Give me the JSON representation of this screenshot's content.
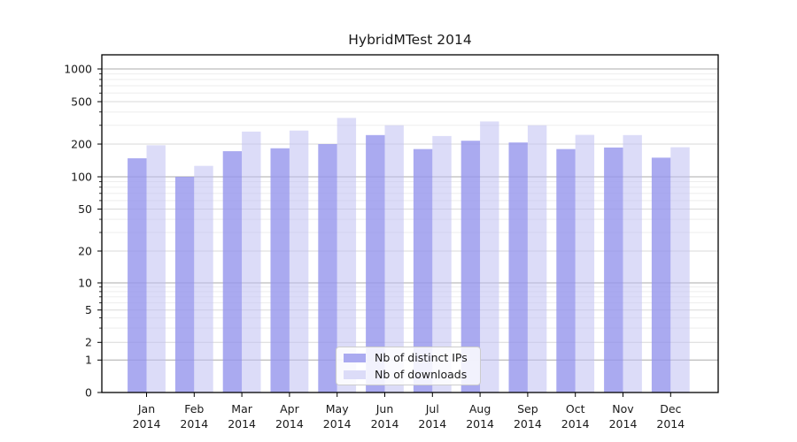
{
  "title": "HybridMTest 2014",
  "chart_data": {
    "type": "bar",
    "title": "HybridMTest 2014",
    "categories": [
      "Jan 2014",
      "Feb 2014",
      "Mar 2014",
      "Apr 2014",
      "May 2014",
      "Jun 2014",
      "Jul 2014",
      "Aug 2014",
      "Sep 2014",
      "Oct 2014",
      "Nov 2014",
      "Dec 2014"
    ],
    "series": [
      {
        "name": "Nb of distinct IPs",
        "color": "#aaaaf0",
        "values": [
          148,
          100,
          172,
          183,
          200,
          243,
          180,
          215,
          207,
          180,
          186,
          150
        ]
      },
      {
        "name": "Nb of downloads",
        "color": "#dcdcf8",
        "values": [
          195,
          126,
          262,
          268,
          352,
          300,
          238,
          326,
          300,
          244,
          243,
          187
        ]
      }
    ],
    "xlabel": "",
    "ylabel": "",
    "yscale": "symlog",
    "ylim": [
      0,
      1400
    ],
    "yticks": [
      0,
      1,
      2,
      5,
      10,
      20,
      50,
      100,
      200,
      500,
      1000
    ],
    "grid": true,
    "legend_position": "lower center"
  },
  "colors": {
    "grid_power10": "#ababab",
    "grid_sub": "#d9d9d9",
    "grid_minor": "#ededed",
    "spine": "#000000",
    "text": "#1a1a1a",
    "legend_border": "#cccccc"
  }
}
